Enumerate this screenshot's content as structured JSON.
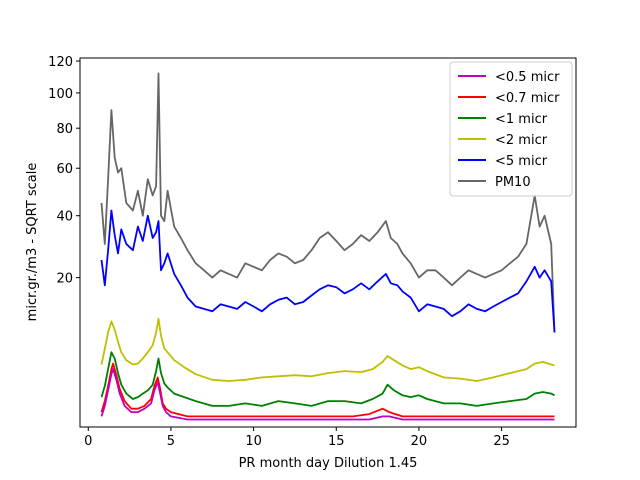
{
  "chart_data": {
    "type": "line",
    "xlabel": "PR month day  Dilution 1.45",
    "ylabel": "micr.gr./m3 - SQRT scale",
    "xlim": [
      -0.5,
      29.5
    ],
    "ylim": [
      0,
      122
    ],
    "yscale": "sqrt",
    "xticks": [
      0,
      5,
      10,
      15,
      20,
      25
    ],
    "yticks": [
      20,
      40,
      60,
      80,
      100,
      120
    ],
    "legend_position": "top-right",
    "series": [
      {
        "name": "<0.5 micr",
        "color": "#bf00bf",
        "x": [
          0.8,
          1.0,
          1.2,
          1.4,
          1.5,
          1.7,
          1.9,
          2.2,
          2.6,
          3.0,
          3.4,
          3.8,
          4.0,
          4.2,
          4.35,
          4.5,
          4.7,
          5.0,
          6,
          7,
          8,
          9,
          10,
          11,
          12,
          13,
          14,
          15,
          16,
          17,
          17.8,
          18.2,
          19,
          20,
          21,
          22,
          23,
          24,
          25,
          26,
          27,
          28,
          28.2
        ],
        "y": [
          0.1,
          0.4,
          1.2,
          2.5,
          3.0,
          2.0,
          1.0,
          0.4,
          0.2,
          0.2,
          0.3,
          0.5,
          1.2,
          1.8,
          1.0,
          0.4,
          0.2,
          0.1,
          0.05,
          0.05,
          0.05,
          0.05,
          0.05,
          0.05,
          0.05,
          0.05,
          0.05,
          0.05,
          0.05,
          0.05,
          0.1,
          0.1,
          0.05,
          0.05,
          0.05,
          0.05,
          0.05,
          0.05,
          0.05,
          0.05,
          0.05,
          0.05,
          0.05
        ]
      },
      {
        "name": "<0.7 micr",
        "color": "#ff0000",
        "x": [
          0.8,
          1.0,
          1.2,
          1.4,
          1.5,
          1.7,
          1.9,
          2.2,
          2.6,
          3.0,
          3.4,
          3.8,
          4.0,
          4.2,
          4.35,
          4.5,
          4.7,
          5.0,
          6,
          7,
          8,
          9,
          10,
          11,
          12,
          13,
          14,
          15,
          16,
          17,
          17.8,
          18.2,
          19,
          20,
          21,
          22,
          23,
          24,
          25,
          26,
          27,
          28,
          28.2
        ],
        "y": [
          0.2,
          0.6,
          1.5,
          3.0,
          3.6,
          2.4,
          1.3,
          0.6,
          0.3,
          0.3,
          0.4,
          0.7,
          1.5,
          2.2,
          1.3,
          0.5,
          0.3,
          0.2,
          0.1,
          0.1,
          0.1,
          0.1,
          0.1,
          0.1,
          0.1,
          0.1,
          0.1,
          0.1,
          0.1,
          0.15,
          0.3,
          0.2,
          0.1,
          0.1,
          0.1,
          0.1,
          0.1,
          0.1,
          0.1,
          0.1,
          0.1,
          0.1,
          0.1
        ]
      },
      {
        "name": "<1 micr",
        "color": "#008000",
        "x": [
          0.8,
          1.0,
          1.2,
          1.4,
          1.6,
          1.8,
          2.0,
          2.3,
          2.7,
          3.0,
          3.3,
          3.6,
          3.9,
          4.1,
          4.25,
          4.4,
          4.6,
          4.8,
          5.2,
          5.8,
          6.5,
          7.5,
          8.5,
          9.5,
          10.5,
          11.5,
          12.5,
          13.5,
          14.5,
          15.5,
          16.5,
          17.2,
          17.8,
          18.1,
          18.5,
          19.0,
          19.5,
          20.0,
          20.5,
          21.5,
          22.5,
          23.5,
          24.5,
          25.5,
          26.5,
          27.0,
          27.5,
          28.0,
          28.2
        ],
        "y": [
          0.8,
          1.5,
          3.0,
          5.0,
          4.2,
          2.6,
          1.6,
          1.0,
          0.7,
          0.8,
          1.0,
          1.2,
          1.6,
          2.8,
          4.2,
          2.6,
          1.7,
          1.4,
          1.0,
          0.8,
          0.6,
          0.4,
          0.4,
          0.5,
          0.4,
          0.6,
          0.5,
          0.4,
          0.6,
          0.6,
          0.5,
          0.7,
          1.0,
          1.6,
          1.2,
          0.9,
          0.8,
          0.9,
          0.7,
          0.5,
          0.5,
          0.4,
          0.5,
          0.6,
          0.7,
          1.0,
          1.1,
          1.0,
          0.9
        ]
      },
      {
        "name": "<2 micr",
        "color": "#bfbf00",
        "x": [
          0.8,
          1.0,
          1.2,
          1.4,
          1.6,
          1.8,
          2.0,
          2.3,
          2.7,
          3.0,
          3.3,
          3.6,
          3.9,
          4.1,
          4.25,
          4.4,
          4.6,
          4.8,
          5.2,
          5.8,
          6.5,
          7.5,
          8.5,
          9.5,
          10.5,
          11.5,
          12.5,
          13.5,
          14.5,
          15.5,
          16.5,
          17.2,
          17.8,
          18.1,
          18.5,
          19.0,
          19.5,
          20.0,
          20.5,
          21.5,
          22.5,
          23.5,
          24.5,
          25.5,
          26.5,
          27.0,
          27.5,
          28.0,
          28.2
        ],
        "y": [
          3.5,
          5.5,
          8.0,
          10.0,
          8.5,
          6.5,
          5.0,
          4.0,
          3.5,
          3.6,
          4.2,
          5.0,
          6.0,
          8.0,
          10.5,
          7.5,
          5.5,
          5.0,
          4.0,
          3.2,
          2.5,
          2.0,
          1.9,
          2.0,
          2.2,
          2.3,
          2.4,
          2.3,
          2.6,
          2.8,
          2.7,
          3.0,
          3.8,
          4.5,
          4.0,
          3.4,
          3.0,
          3.2,
          2.8,
          2.2,
          2.1,
          1.9,
          2.2,
          2.6,
          3.0,
          3.6,
          3.8,
          3.5,
          3.4
        ]
      },
      {
        "name": "<5 micr",
        "color": "#0000ff",
        "x": [
          0.8,
          1.0,
          1.2,
          1.4,
          1.6,
          1.8,
          2.0,
          2.3,
          2.7,
          3.0,
          3.3,
          3.6,
          3.9,
          4.1,
          4.25,
          4.4,
          4.6,
          4.8,
          5.2,
          5.6,
          6.0,
          6.5,
          7.0,
          7.5,
          8.0,
          8.5,
          9.0,
          9.5,
          10.0,
          10.5,
          11.0,
          11.5,
          12.0,
          12.5,
          13.0,
          13.5,
          14.0,
          14.5,
          15.0,
          15.5,
          16.0,
          16.5,
          17.0,
          17.5,
          18.0,
          18.3,
          18.7,
          19.0,
          19.5,
          20.0,
          20.5,
          21.0,
          21.5,
          22.0,
          22.5,
          23.0,
          23.5,
          24.0,
          24.5,
          25.0,
          25.5,
          26.0,
          26.5,
          27.0,
          27.3,
          27.6,
          28.0,
          28.2
        ],
        "y": [
          25,
          18,
          28,
          42,
          33,
          27,
          35,
          30,
          28,
          36,
          31,
          40,
          32,
          34,
          38,
          22,
          24,
          27,
          21,
          18,
          15,
          13,
          12.5,
          12,
          13.5,
          13,
          12.5,
          14,
          13,
          12,
          13.5,
          14.5,
          15,
          13.5,
          14,
          15.5,
          17,
          18,
          17.5,
          16,
          17,
          18.5,
          17,
          19,
          21,
          18.5,
          18,
          16.5,
          15,
          12,
          13.5,
          13,
          12.5,
          11,
          12,
          13.5,
          12.5,
          12,
          13,
          14,
          15,
          16,
          19,
          23,
          20,
          22,
          19,
          8
        ]
      },
      {
        "name": "PM10",
        "color": "#666666",
        "x": [
          0.8,
          1.0,
          1.2,
          1.4,
          1.6,
          1.8,
          2.0,
          2.3,
          2.7,
          3.0,
          3.3,
          3.6,
          3.9,
          4.1,
          4.25,
          4.4,
          4.6,
          4.8,
          5.2,
          5.6,
          6.0,
          6.5,
          7.0,
          7.5,
          8.0,
          8.5,
          9.0,
          9.5,
          10.0,
          10.5,
          11.0,
          11.5,
          12.0,
          12.5,
          13.0,
          13.5,
          14.0,
          14.5,
          15.0,
          15.5,
          16.0,
          16.5,
          17.0,
          17.5,
          18.0,
          18.3,
          18.7,
          19.0,
          19.5,
          20.0,
          20.5,
          21.0,
          21.5,
          22.0,
          22.5,
          23.0,
          23.5,
          24.0,
          24.5,
          25.0,
          25.5,
          26.0,
          26.5,
          27.0,
          27.3,
          27.6,
          28.0,
          28.2
        ],
        "y": [
          45,
          30,
          55,
          90,
          65,
          58,
          60,
          45,
          42,
          50,
          40,
          55,
          48,
          52,
          112,
          40,
          38,
          50,
          36,
          32,
          28,
          24,
          22,
          20,
          22,
          21,
          20,
          24,
          23,
          22,
          25,
          27,
          26,
          24,
          25,
          28,
          32,
          34,
          31,
          28,
          30,
          33,
          31,
          34,
          38,
          32,
          30,
          27,
          24,
          20,
          22,
          22,
          20,
          18,
          20,
          22,
          21,
          20,
          21,
          22,
          24,
          26,
          30,
          48,
          36,
          40,
          30,
          8
        ]
      }
    ]
  }
}
